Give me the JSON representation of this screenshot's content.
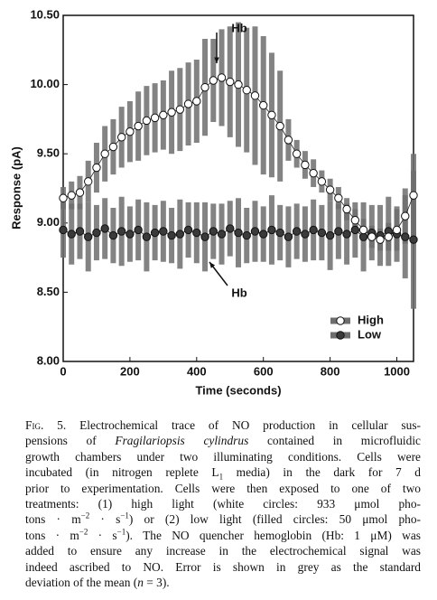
{
  "chart_data": {
    "type": "scatter",
    "xlabel": "Time (seconds)",
    "ylabel": "Response (pA)",
    "x": [
      0,
      25,
      50,
      75,
      100,
      125,
      150,
      175,
      200,
      225,
      250,
      275,
      300,
      325,
      350,
      375,
      400,
      425,
      450,
      475,
      500,
      525,
      550,
      575,
      600,
      625,
      650,
      675,
      700,
      725,
      750,
      775,
      800,
      825,
      850,
      875,
      900,
      925,
      950,
      975,
      1000,
      1025,
      1050
    ],
    "series": [
      {
        "name": "High",
        "color": "#ffffff",
        "values": [
          9.18,
          9.2,
          9.22,
          9.3,
          9.4,
          9.5,
          9.55,
          9.62,
          9.66,
          9.7,
          9.74,
          9.76,
          9.78,
          9.8,
          9.82,
          9.86,
          9.88,
          9.98,
          10.03,
          10.05,
          10.02,
          10.0,
          9.96,
          9.92,
          9.85,
          9.78,
          9.7,
          9.6,
          9.5,
          9.42,
          9.36,
          9.3,
          9.24,
          9.18,
          9.1,
          9.02,
          8.95,
          8.9,
          8.88,
          8.9,
          8.95,
          9.05,
          9.2
        ],
        "error": [
          0.08,
          0.1,
          0.12,
          0.15,
          0.18,
          0.2,
          0.2,
          0.22,
          0.22,
          0.25,
          0.25,
          0.25,
          0.25,
          0.3,
          0.3,
          0.3,
          0.3,
          0.35,
          0.3,
          0.35,
          0.4,
          0.45,
          0.45,
          0.5,
          0.5,
          0.45,
          0.4,
          0.15,
          0.1,
          0.1,
          0.1,
          0.08,
          0.08,
          0.08,
          0.08,
          0.08,
          0.08,
          0.08,
          0.08,
          0.1,
          0.15,
          0.2,
          0.3
        ]
      },
      {
        "name": "Low",
        "color": "#3a3a3a",
        "values": [
          8.95,
          8.92,
          8.94,
          8.9,
          8.93,
          8.96,
          8.91,
          8.94,
          8.92,
          8.95,
          8.9,
          8.93,
          8.94,
          8.91,
          8.92,
          8.95,
          8.93,
          8.9,
          8.94,
          8.92,
          8.96,
          8.93,
          8.91,
          8.94,
          8.92,
          8.95,
          8.93,
          8.9,
          8.94,
          8.92,
          8.95,
          8.93,
          8.91,
          8.94,
          8.92,
          8.95,
          8.9,
          8.93,
          8.91,
          8.94,
          8.92,
          8.9,
          8.88
        ],
        "error": [
          0.2,
          0.22,
          0.2,
          0.25,
          0.2,
          0.22,
          0.2,
          0.25,
          0.2,
          0.22,
          0.25,
          0.2,
          0.22,
          0.2,
          0.25,
          0.2,
          0.22,
          0.25,
          0.2,
          0.22,
          0.2,
          0.25,
          0.2,
          0.22,
          0.2,
          0.25,
          0.2,
          0.22,
          0.2,
          0.2,
          0.22,
          0.2,
          0.25,
          0.2,
          0.22,
          0.2,
          0.25,
          0.2,
          0.22,
          0.25,
          0.2,
          0.3,
          0.5
        ]
      }
    ],
    "error_color": "#6e6e6e",
    "xlim": [
      0,
      1050
    ],
    "xticks": [
      0,
      200,
      400,
      600,
      800,
      1000
    ],
    "ylim": [
      8,
      10.5
    ],
    "yticks": [
      {
        "value": 8,
        "label": "8.00"
      },
      {
        "value": 8.5,
        "label": "8.50"
      },
      {
        "value": 9,
        "label": "9.00"
      },
      {
        "value": 9.5,
        "label": "9.50"
      },
      {
        "value": 10,
        "label": "10.00"
      },
      {
        "value": 10.5,
        "label": "10.50"
      }
    ],
    "grid": false,
    "legend": "lower right",
    "annotations": [
      "Hb",
      "Hb"
    ]
  },
  "caption": {
    "lines": [
      [
        {
          "text": "Fig. 5.",
          "style": "smallcaps"
        },
        {
          "text": " Electrochemical trace of NO production in cellular sus-"
        }
      ],
      [
        {
          "text": "pensions of "
        },
        {
          "text": "Fragilariopsis cylindrus",
          "style": "italic"
        },
        {
          "text": " contained in microfluidic"
        }
      ],
      [
        {
          "text": "growth chambers under two illuminating conditions. Cells were"
        }
      ],
      [
        {
          "text": "incubated (in nitrogen replete L"
        },
        {
          "text": "1",
          "style": "sub"
        },
        {
          "text": " media) in the dark for 7 d"
        }
      ],
      [
        {
          "text": "prior to experimentation. Cells were then exposed to one of two"
        }
      ],
      [
        {
          "text": "treatments: (1) high light (white circles: 933 μmol pho-"
        }
      ],
      [
        {
          "text": "tons · m"
        },
        {
          "text": "−2",
          "style": "sup"
        },
        {
          "text": " · s"
        },
        {
          "text": "−1",
          "style": "sup"
        },
        {
          "text": ") or (2) low light (filled circles: 50 μmol pho-"
        }
      ],
      [
        {
          "text": "tons · m"
        },
        {
          "text": "−2",
          "style": "sup"
        },
        {
          "text": " · s"
        },
        {
          "text": "−1",
          "style": "sup"
        },
        {
          "text": "). The NO quencher hemoglobin (Hb: 1 μM) was"
        }
      ],
      [
        {
          "text": "added to ensure any increase in the electrochemical signal was"
        }
      ],
      [
        {
          "text": "indeed ascribed to NO. Error is shown in grey as the standard"
        }
      ],
      [
        {
          "text": "deviation of the mean ("
        },
        {
          "text": "n",
          "style": "italic"
        },
        {
          "text": " = 3)."
        }
      ]
    ]
  }
}
